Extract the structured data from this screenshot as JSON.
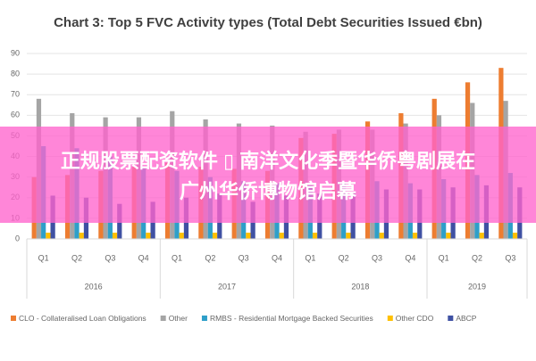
{
  "chart_data": {
    "type": "bar",
    "title": "Chart 3: Top 5 FVC Activity types (Total Debt Securities Issued €bn)",
    "groups": [
      {
        "name": "2016",
        "categories": [
          "Q1",
          "Q2",
          "Q3",
          "Q4"
        ]
      },
      {
        "name": "2017",
        "categories": [
          "Q1",
          "Q2",
          "Q3",
          "Q4"
        ]
      },
      {
        "name": "2018",
        "categories": [
          "Q1",
          "Q2",
          "Q3",
          "Q4"
        ]
      },
      {
        "name": "2019",
        "categories": [
          "Q1",
          "Q2",
          "Q3"
        ]
      }
    ],
    "series": [
      {
        "name": "CLO - Collateralised Loan Obligations",
        "color": "#ed7d31",
        "values": [
          30,
          31,
          33,
          35,
          37,
          35,
          34,
          33,
          49,
          51,
          57,
          61,
          68,
          76,
          83
        ]
      },
      {
        "name": "Other",
        "color": "#a5a5a5",
        "values": [
          68,
          61,
          59,
          59,
          62,
          58,
          56,
          55,
          52,
          53,
          53,
          56,
          60,
          66,
          67
        ]
      },
      {
        "name": "RMBS - Residential Mortgage Backed Securities",
        "color": "#2e9fc9",
        "values": [
          45,
          44,
          40,
          35,
          33,
          30,
          28,
          27,
          26,
          27,
          28,
          27,
          29,
          31,
          32
        ]
      },
      {
        "name": "Other CDO",
        "color": "#ffc000",
        "values": [
          3,
          3,
          3,
          3,
          3,
          3,
          3,
          3,
          3,
          3,
          3,
          3,
          3,
          3,
          3
        ]
      },
      {
        "name": "ABCP",
        "color": "#3f51a3",
        "values": [
          21,
          20,
          17,
          18,
          20,
          22,
          18,
          21,
          22,
          23,
          24,
          24,
          25,
          26,
          25
        ]
      }
    ],
    "ylim": [
      0,
      90
    ],
    "yticks": [
      0,
      10,
      20,
      30,
      40,
      50,
      60,
      70,
      80,
      90
    ],
    "grid": true
  },
  "overlay": {
    "lines": [
      "正规股票配资软件 ▯ 南洋文化季暨华侨粤剧展在",
      "广州华侨博物馆启幕"
    ]
  }
}
